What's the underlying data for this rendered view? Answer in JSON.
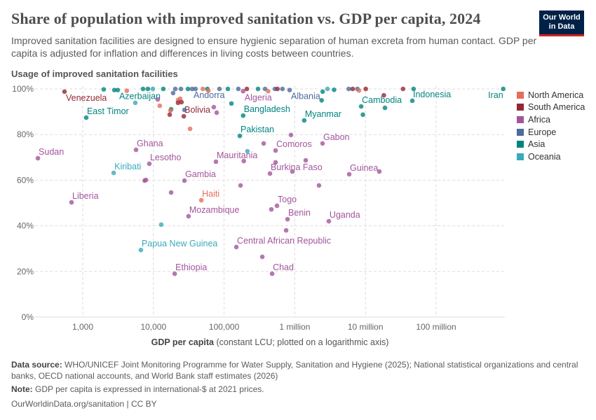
{
  "header": {
    "title": "Share of population with improved sanitation vs. GDP per capita, 2024",
    "subtitle": "Improved sanitation facilities are designed to ensure hygienic separation of human excreta from human contact. GDP per capita is adjusted for inflation and differences in living costs between countries.",
    "logo": [
      "Our World",
      "in Data"
    ]
  },
  "chart_data": {
    "type": "scatter",
    "title": "Share of population with improved sanitation vs. GDP per capita, 2024",
    "ylabel": "Usage of improved sanitation facilities",
    "xlabel_bold": "GDP per capita",
    "xlabel_rest": " (constant LCU; plotted on a logarithmic axis)",
    "x_scale": "log",
    "xlim": [
      215,
      900000000
    ],
    "ylim": [
      0,
      100
    ],
    "x_ticks": [
      {
        "v": 1000,
        "label": "1,000"
      },
      {
        "v": 10000,
        "label": "10,000"
      },
      {
        "v": 100000,
        "label": "100,000"
      },
      {
        "v": 1000000,
        "label": "1 million"
      },
      {
        "v": 10000000,
        "label": "10 million"
      },
      {
        "v": 100000000,
        "label": "100 million"
      }
    ],
    "y_ticks": [
      {
        "v": 0,
        "label": "0%"
      },
      {
        "v": 20,
        "label": "20%"
      },
      {
        "v": 40,
        "label": "40%"
      },
      {
        "v": 60,
        "label": "60%"
      },
      {
        "v": 80,
        "label": "80%"
      },
      {
        "v": 100,
        "label": "100%"
      }
    ],
    "grid": true,
    "legend_position": "right",
    "legend": [
      {
        "name": "North America",
        "color": "#e56e5a"
      },
      {
        "name": "South America",
        "color": "#932834"
      },
      {
        "name": "Africa",
        "color": "#a2559c"
      },
      {
        "name": "Europe",
        "color": "#4c6a9c"
      },
      {
        "name": "Asia",
        "color": "#00847e"
      },
      {
        "name": "Oceania",
        "color": "#38aaba"
      }
    ],
    "points": [
      [
        552,
        98.8,
        "South America",
        "Venezuela"
      ],
      [
        3130,
        99.5,
        "Asia",
        "Azerbaijan"
      ],
      [
        35300,
        100,
        "Europe",
        "Andorra"
      ],
      [
        186000,
        99,
        "Africa",
        "Algeria"
      ],
      [
        845000,
        99.5,
        "Europe",
        "Albania"
      ],
      [
        890000000,
        100,
        "Asia",
        "Iran"
      ],
      [
        46000000,
        94.8,
        "Asia",
        "Indonesia"
      ],
      [
        8700000,
        92.3,
        "Asia",
        "Cambodia"
      ],
      [
        1120,
        87.4,
        "Asia",
        "East Timor"
      ],
      [
        26900,
        88.0,
        "South America",
        "Bolivia"
      ],
      [
        186000,
        88.3,
        "Asia",
        "Bangladesh"
      ],
      [
        1360000,
        86.2,
        "Asia",
        "Myanmar"
      ],
      [
        167000,
        79.4,
        "Asia",
        "Pakistan"
      ],
      [
        2470000,
        76.1,
        "Africa",
        "Gabon"
      ],
      [
        535000,
        73.0,
        "Africa",
        "Comoros"
      ],
      [
        5680,
        73.3,
        "Africa",
        "Ghana"
      ],
      [
        232,
        69.6,
        "Africa",
        "Sudan"
      ],
      [
        8750,
        67.2,
        "Africa",
        "Lesotho"
      ],
      [
        76700,
        68.1,
        "Africa",
        "Mauritania"
      ],
      [
        2740,
        63.2,
        "Oceania",
        "Kiribati"
      ],
      [
        446000,
        62.9,
        "Africa",
        "Burkina Faso"
      ],
      [
        5890000,
        62.6,
        "Africa",
        "Guinea"
      ],
      [
        27500,
        59.8,
        "Africa",
        "Gambia"
      ],
      [
        47600,
        51.2,
        "North America",
        "Haiti"
      ],
      [
        694,
        50.3,
        "Africa",
        "Liberia"
      ],
      [
        560000,
        48.8,
        "Africa",
        "Togo"
      ],
      [
        31400,
        44.2,
        "Africa",
        "Mozambique"
      ],
      [
        789000,
        42.9,
        "Africa",
        "Benin"
      ],
      [
        3030000,
        42.0,
        "Africa",
        "Uganda"
      ],
      [
        149000,
        30.7,
        "Africa",
        "Central African Republic"
      ],
      [
        6650,
        29.4,
        "Oceania",
        "Papua New Guinea"
      ],
      [
        20000,
        19.0,
        "Africa",
        "Ethiopia"
      ],
      [
        478000,
        19.0,
        "Africa",
        "Chad"
      ],
      [
        883000,
        79.8,
        "Africa"
      ],
      [
        363000,
        76.1,
        "Africa"
      ],
      [
        214000,
        72.7,
        "Oceania"
      ],
      [
        190000,
        68.4,
        "Africa"
      ],
      [
        535000,
        67.8,
        "Africa"
      ],
      [
        1430000,
        68.7,
        "Africa"
      ],
      [
        925000,
        63.8,
        "Africa"
      ],
      [
        15700000,
        63.8,
        "Africa"
      ],
      [
        7500,
        59.8,
        "Africa"
      ],
      [
        7850,
        60.1,
        "Africa"
      ],
      [
        17800,
        54.6,
        "Africa"
      ],
      [
        171000,
        57.7,
        "Africa"
      ],
      [
        2200000,
        57.7,
        "Africa"
      ],
      [
        466000,
        47.2,
        "Africa"
      ],
      [
        12900,
        40.5,
        "Oceania"
      ],
      [
        754000,
        38.0,
        "Africa"
      ],
      [
        347000,
        26.4,
        "Africa"
      ],
      [
        33000,
        82.5,
        "North America"
      ],
      [
        5540,
        93.9,
        "Oceania"
      ],
      [
        12300,
        92.6,
        "North America"
      ],
      [
        11500,
        95.4,
        "Africa"
      ],
      [
        17800,
        91.1,
        "Asia"
      ],
      [
        17400,
        90.5,
        "North America"
      ],
      [
        22300,
        95.1,
        "North America"
      ],
      [
        23900,
        95.7,
        "North America"
      ],
      [
        22300,
        93.9,
        "South America"
      ],
      [
        25000,
        94.2,
        "South America"
      ],
      [
        17000,
        88.7,
        "South America"
      ],
      [
        19000,
        98.2,
        "Europe"
      ],
      [
        27500,
        90.8,
        "Europe"
      ],
      [
        71500,
        92.0,
        "Africa"
      ],
      [
        78500,
        89.6,
        "Africa"
      ],
      [
        127000,
        93.6,
        "Asia"
      ],
      [
        2480000,
        98.8,
        "Asia"
      ],
      [
        18200000,
        97.2,
        "South America"
      ],
      [
        34000000,
        100,
        "South America"
      ],
      [
        9200000,
        88.7,
        "Asia"
      ],
      [
        18900000,
        91.7,
        "Asia"
      ],
      [
        2400000,
        95,
        "Asia"
      ],
      [
        1980,
        99.8,
        "Asia"
      ],
      [
        2800,
        99.5,
        "Asia"
      ],
      [
        7130,
        100,
        "Asia"
      ],
      [
        8350,
        100,
        "Asia"
      ],
      [
        9800,
        100,
        "Oceania"
      ],
      [
        13800,
        100,
        "Asia"
      ],
      [
        20400,
        100,
        "Europe"
      ],
      [
        24500,
        100,
        "Europe"
      ],
      [
        30800,
        100,
        "Asia"
      ],
      [
        39400,
        100,
        "Europe"
      ],
      [
        50000,
        100,
        "North America"
      ],
      [
        58000,
        100,
        "Asia"
      ],
      [
        86000,
        100,
        "Europe"
      ],
      [
        113000,
        100,
        "Asia"
      ],
      [
        159000,
        100,
        "Europe"
      ],
      [
        210000,
        100,
        "South America"
      ],
      [
        302000,
        100,
        "Asia"
      ],
      [
        380000,
        100,
        "Europe"
      ],
      [
        523000,
        100,
        "Europe"
      ],
      [
        570000,
        100,
        "South America"
      ],
      [
        670000,
        100,
        "Europe"
      ],
      [
        2900000,
        100,
        "Oceania"
      ],
      [
        3600000,
        99.6,
        "Asia"
      ],
      [
        5800000,
        100,
        "Europe"
      ],
      [
        6600000,
        100,
        "South America"
      ],
      [
        7700000,
        100,
        "Europe"
      ],
      [
        8100000,
        99.3,
        "North America"
      ],
      [
        10100000,
        100,
        "South America"
      ],
      [
        48000000,
        100,
        "Asia"
      ],
      [
        4200,
        99.2,
        "North America"
      ],
      [
        60000,
        99.2,
        "North America"
      ],
      [
        420000,
        99,
        "North America"
      ]
    ]
  },
  "footer": {
    "source_label": "Data source:",
    "source": "WHO/UNICEF Joint Monitoring Programme for Water Supply, Sanitation and Hygiene (2025); National statistical organizations and central banks, OECD national accounts, and World Bank staff estimates (2026)",
    "note_label": "Note:",
    "note": "GDP per capita is expressed in international-$ at 2021 prices.",
    "url": "OurWorldinData.org/sanitation | CC BY"
  }
}
